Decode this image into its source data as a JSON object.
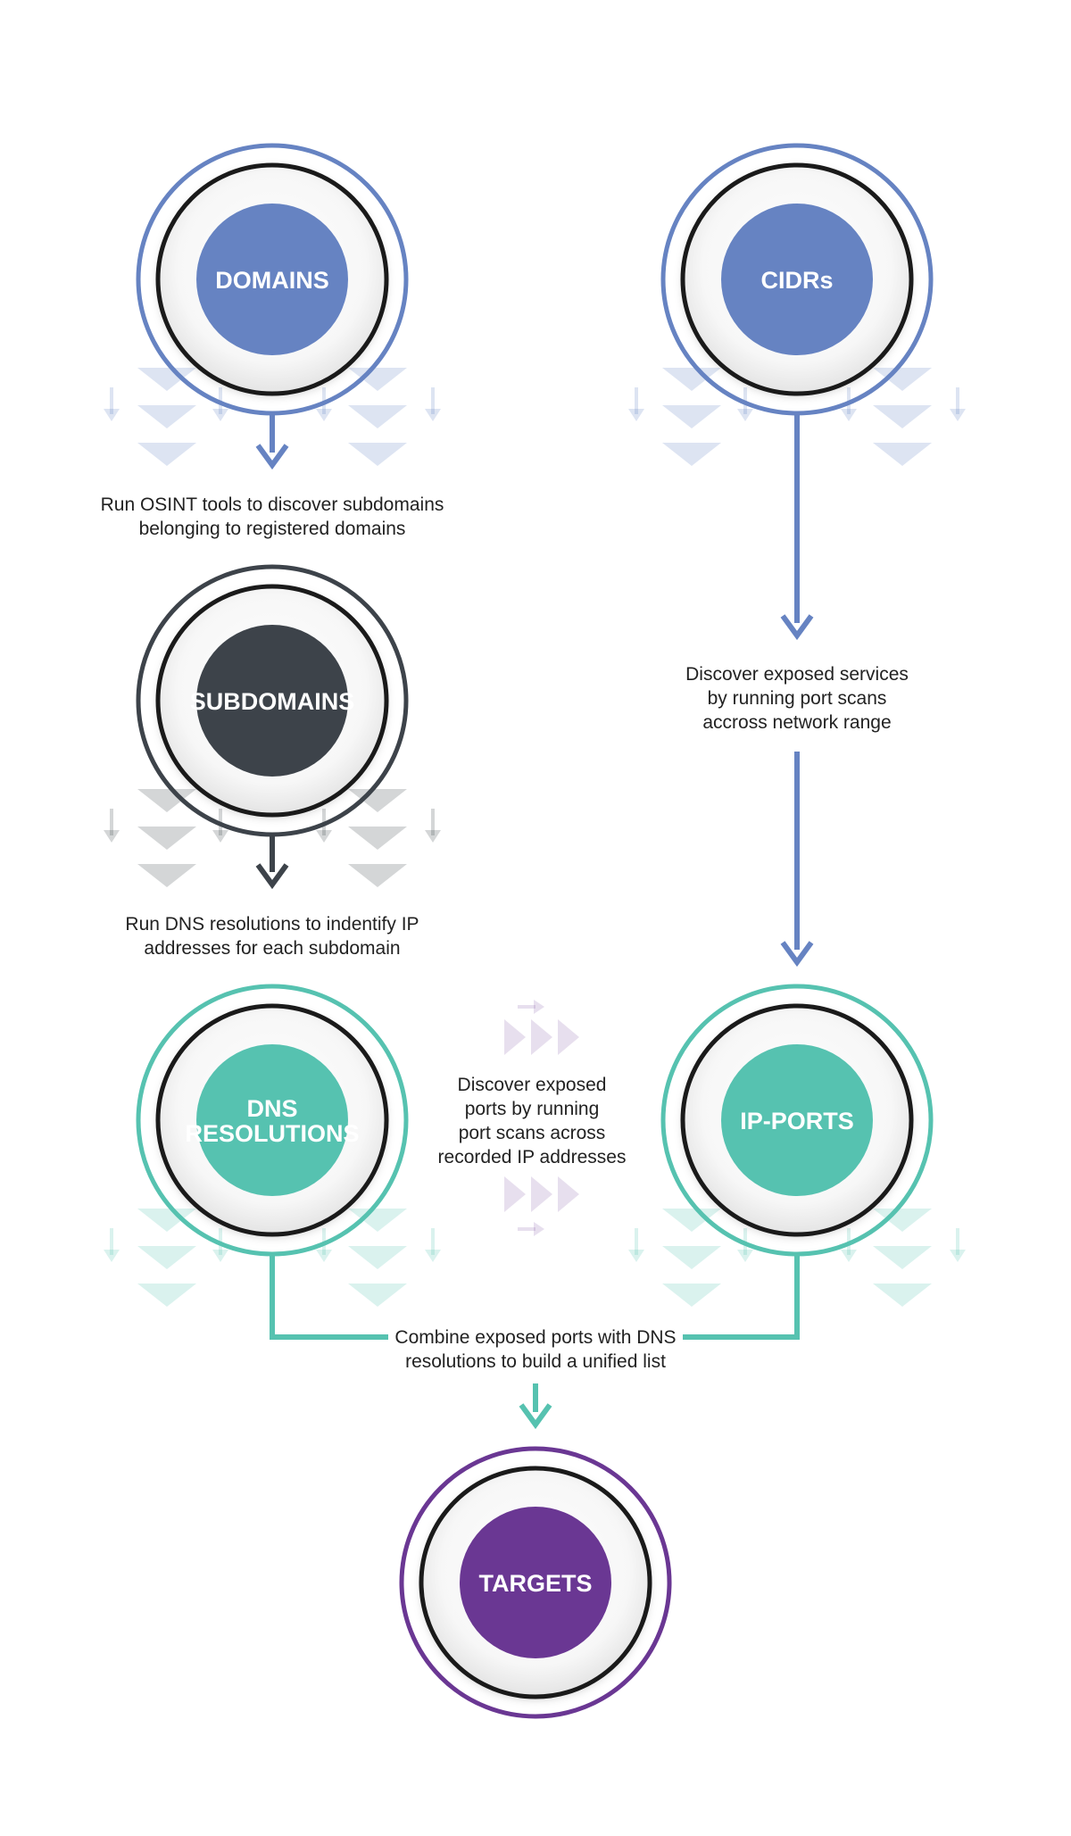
{
  "colors": {
    "blue": "#6683c2",
    "dark": "#3d434a",
    "teal": "#56c2b0",
    "purple": "#6a3793"
  },
  "nodes": {
    "domains": {
      "label": "DOMAINS"
    },
    "cidrs": {
      "label": "CIDRs"
    },
    "subdomains": {
      "label": "SUBDOMAINS"
    },
    "dns_resolutions": {
      "label_line1": "DNS",
      "label_line2": "RESOLUTIONS"
    },
    "ip_ports": {
      "label": "IP-PORTS"
    },
    "targets": {
      "label": "TARGETS"
    }
  },
  "steps": {
    "osint": {
      "line1": "Run OSINT tools to discover subdomains",
      "line2": "belonging to registered domains"
    },
    "port_scan_range": {
      "line1": "Discover exposed services",
      "line2": "by running port scans",
      "line3": "accross network range"
    },
    "dns_resolution": {
      "line1": "Run DNS resolutions to indentify IP",
      "line2": "addresses for each subdomain"
    },
    "port_scan_ips": {
      "line1": "Discover exposed",
      "line2": "ports by running",
      "line3": "port scans across",
      "line4": "recorded IP addresses"
    },
    "combine": {
      "line1": "Combine exposed ports with DNS",
      "line2": "resolutions to build a unified list"
    }
  }
}
